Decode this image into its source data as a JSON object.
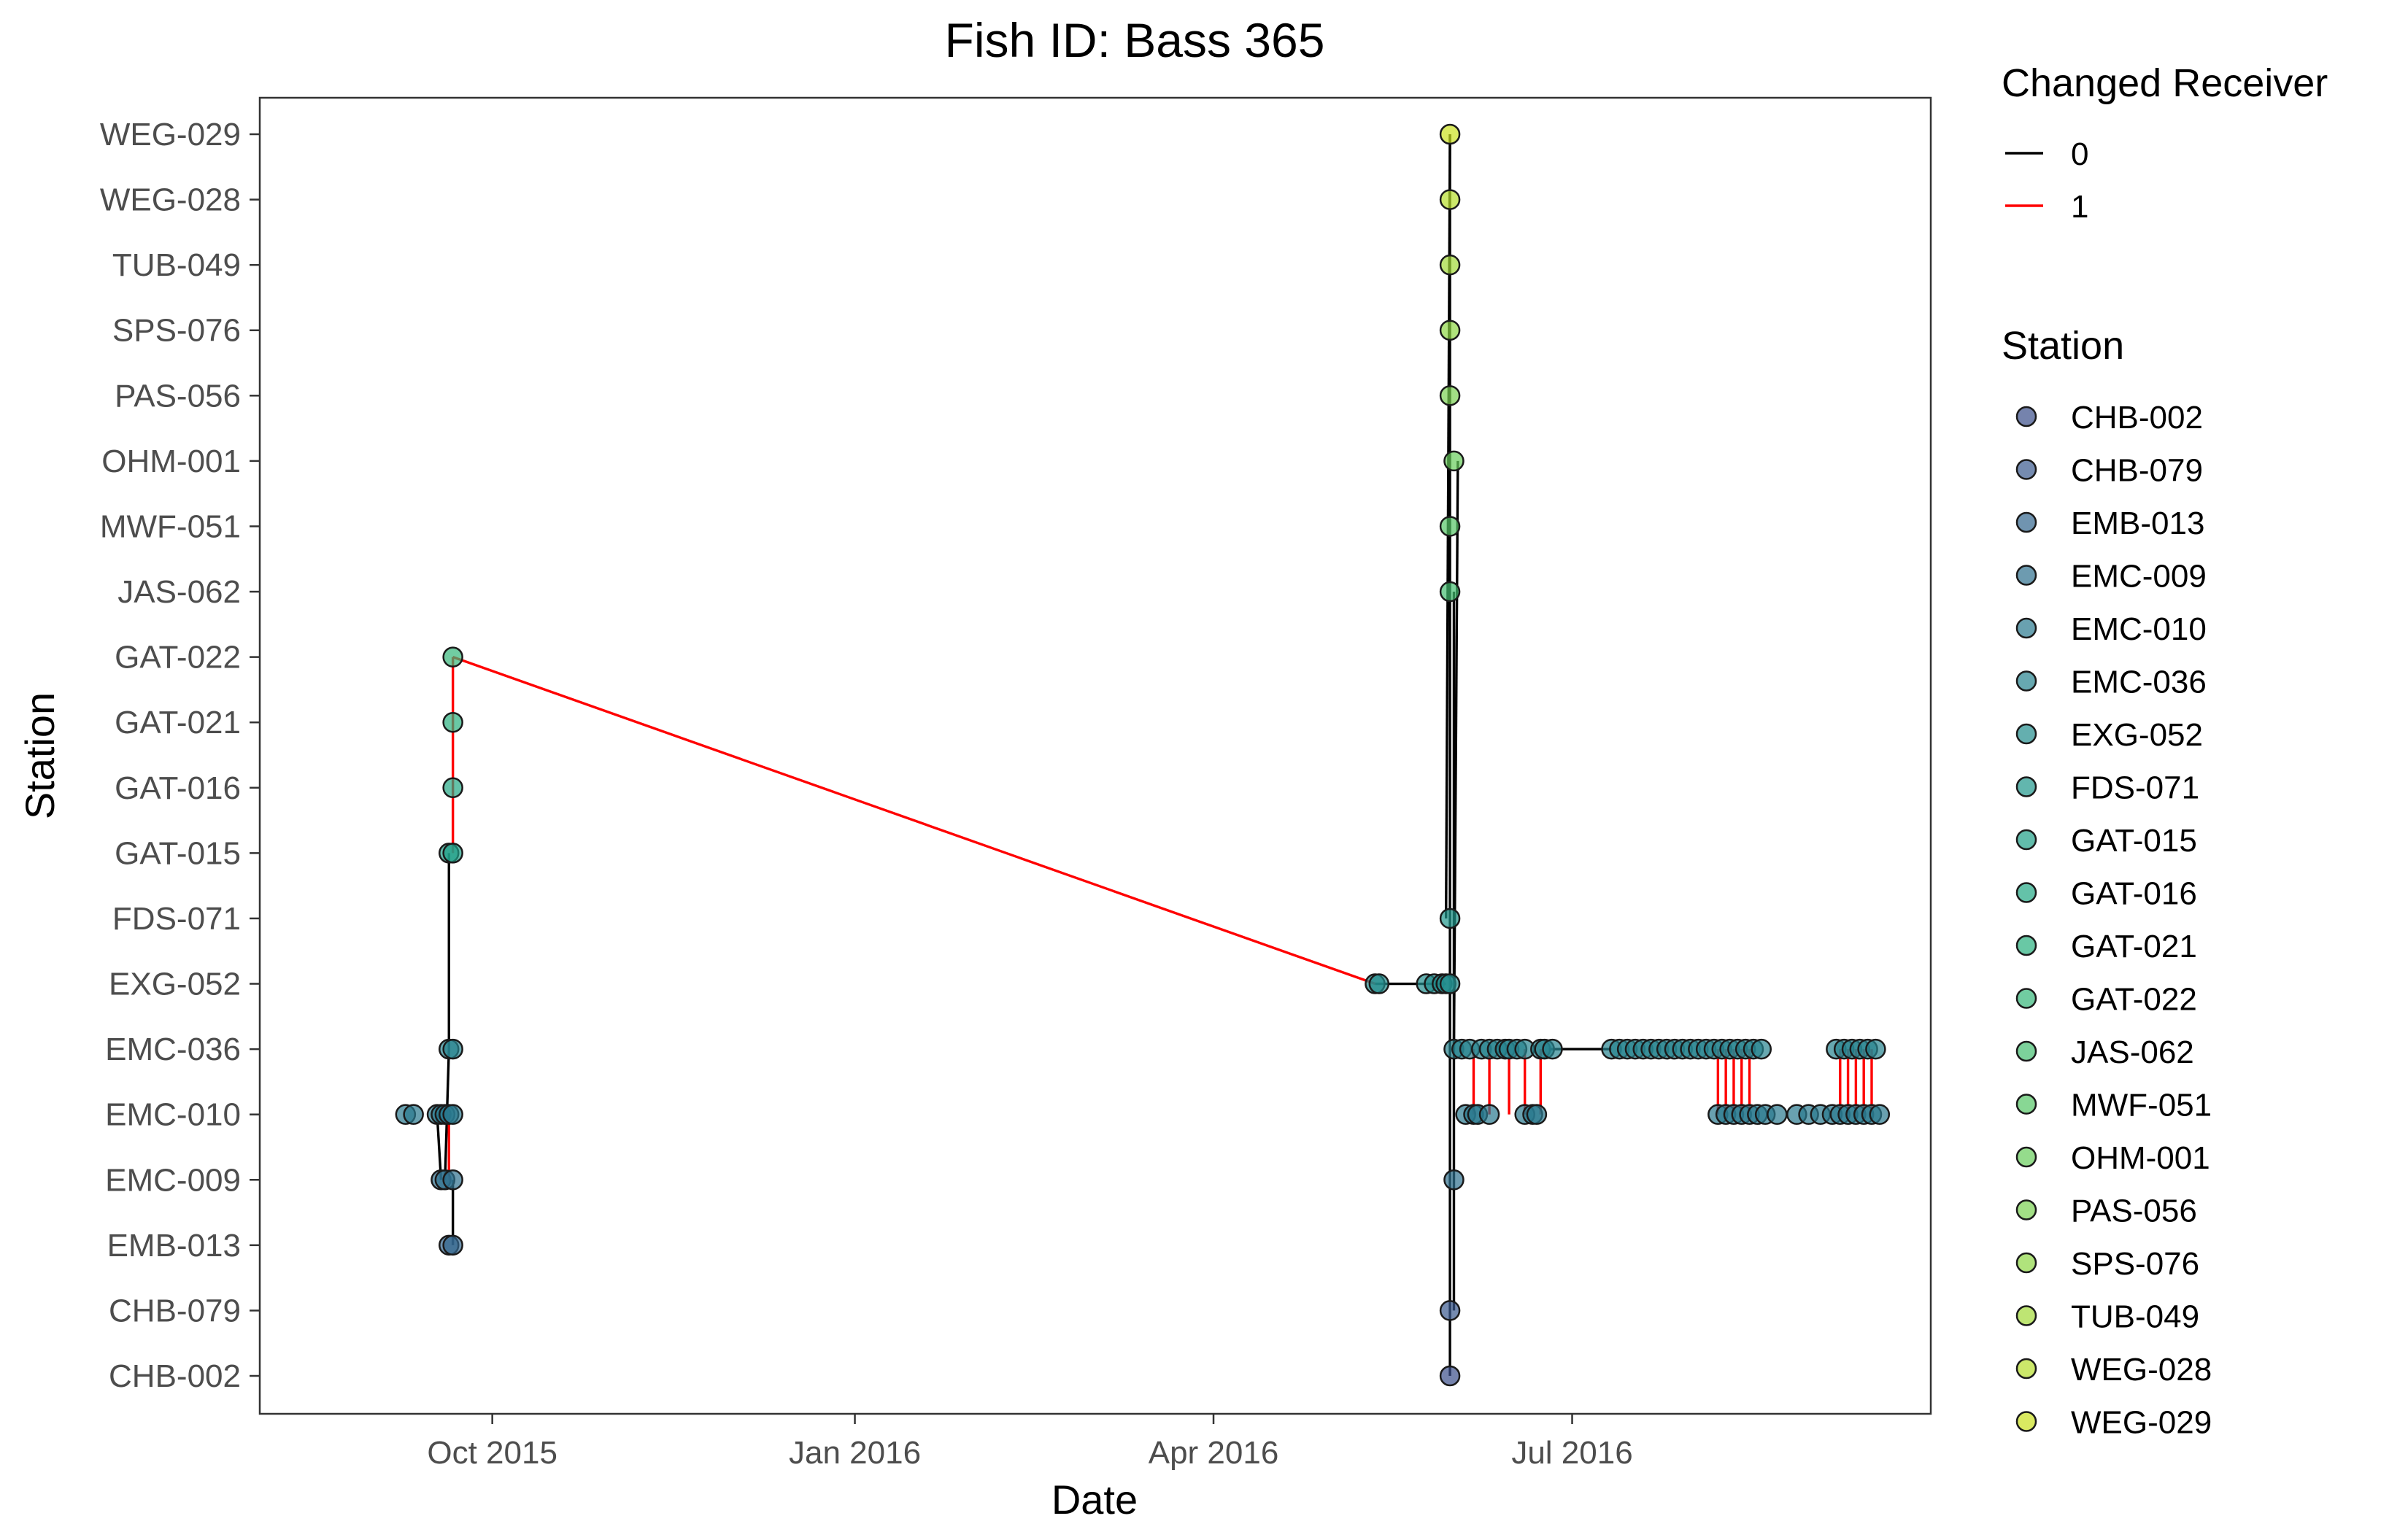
{
  "chart_data": {
    "type": "scatter",
    "title": "Fish ID: Bass 365",
    "xlabel": "Date",
    "ylabel": "Station",
    "x_ticks": [
      "Oct 2015",
      "Jan 2016",
      "Apr 2016",
      "Jul 2016"
    ],
    "x_tick_dates": [
      "2015-10-01",
      "2016-01-01",
      "2016-04-01",
      "2016-07-01"
    ],
    "x_range": [
      "2015-08-03",
      "2016-09-30"
    ],
    "stations": [
      "CHB-002",
      "CHB-079",
      "EMB-013",
      "EMC-009",
      "EMC-010",
      "EMC-036",
      "EXG-052",
      "FDS-071",
      "GAT-015",
      "GAT-016",
      "GAT-021",
      "GAT-022",
      "JAS-062",
      "MWF-051",
      "OHM-001",
      "PAS-056",
      "SPS-076",
      "TUB-049",
      "WEG-028",
      "WEG-029"
    ],
    "station_colors": [
      "#3b4f8a",
      "#3a5a8f",
      "#33668e",
      "#2f708e",
      "#2a798e",
      "#26838e",
      "#228d8d",
      "#1f978b",
      "#1fa088",
      "#22a884",
      "#2ab07f",
      "#35b779",
      "#44bf70",
      "#55c667",
      "#68cd5b",
      "#7ad151",
      "#8fd744",
      "#a2da37",
      "#b6de2b",
      "#cbe11e"
    ],
    "grid": false,
    "legend": {
      "position": "right",
      "changed_receiver": {
        "title": "Changed Receiver",
        "entries": [
          {
            "label": "0",
            "color": "#000000"
          },
          {
            "label": "1",
            "color": "#ff0000"
          }
        ]
      },
      "station": {
        "title": "Station"
      }
    },
    "series": [
      {
        "name": "0",
        "color": "#000000",
        "segments": [
          [
            [
              "2015-09-17",
              "EMC-010"
            ],
            [
              "2015-09-18",
              "EMC-009"
            ]
          ],
          [
            [
              "2015-09-19",
              "EMC-009"
            ],
            [
              "2015-09-20",
              "EMC-036"
            ]
          ],
          [
            [
              "2015-09-20",
              "EMC-036"
            ],
            [
              "2015-09-20",
              "GAT-015"
            ]
          ],
          [
            [
              "2015-09-21",
              "EMC-009"
            ],
            [
              "2015-09-21",
              "EMB-013"
            ]
          ],
          [
            [
              "2016-05-12",
              "EXG-052"
            ],
            [
              "2016-05-30",
              "EXG-052"
            ]
          ],
          [
            [
              "2016-05-30",
              "FDS-071"
            ],
            [
              "2016-05-31",
              "WEG-029"
            ]
          ],
          [
            [
              "2016-05-31",
              "CHB-002"
            ],
            [
              "2016-05-31",
              "WEG-029"
            ]
          ],
          [
            [
              "2016-06-01",
              "CHB-079"
            ],
            [
              "2016-06-01",
              "JAS-062"
            ]
          ],
          [
            [
              "2016-06-01",
              "EMC-036"
            ],
            [
              "2016-06-02",
              "OHM-001"
            ]
          ],
          [
            [
              "2016-06-25",
              "EMC-036"
            ],
            [
              "2016-07-11",
              "EMC-036"
            ]
          ]
        ]
      },
      {
        "name": "1",
        "color": "#ff0000",
        "segments": [
          [
            [
              "2015-09-21",
              "GAT-022"
            ],
            [
              "2016-05-12",
              "EXG-052"
            ]
          ],
          [
            [
              "2015-09-21",
              "GAT-022"
            ],
            [
              "2015-09-21",
              "GAT-015"
            ]
          ],
          [
            [
              "2015-09-20",
              "EMC-010"
            ],
            [
              "2015-09-20",
              "EMC-009"
            ]
          ],
          [
            [
              "2016-06-06",
              "EMC-010"
            ],
            [
              "2016-06-06",
              "EMC-036"
            ]
          ],
          [
            [
              "2016-06-10",
              "EMC-010"
            ],
            [
              "2016-06-10",
              "EMC-036"
            ]
          ],
          [
            [
              "2016-06-15",
              "EMC-010"
            ],
            [
              "2016-06-15",
              "EMC-036"
            ]
          ],
          [
            [
              "2016-06-19",
              "EMC-010"
            ],
            [
              "2016-06-19",
              "EMC-036"
            ]
          ],
          [
            [
              "2016-06-23",
              "EMC-010"
            ],
            [
              "2016-06-23",
              "EMC-036"
            ]
          ],
          [
            [
              "2016-08-07",
              "EMC-010"
            ],
            [
              "2016-08-07",
              "EMC-036"
            ]
          ],
          [
            [
              "2016-08-09",
              "EMC-010"
            ],
            [
              "2016-08-09",
              "EMC-036"
            ]
          ],
          [
            [
              "2016-08-11",
              "EMC-010"
            ],
            [
              "2016-08-11",
              "EMC-036"
            ]
          ],
          [
            [
              "2016-08-13",
              "EMC-010"
            ],
            [
              "2016-08-13",
              "EMC-036"
            ]
          ],
          [
            [
              "2016-08-15",
              "EMC-010"
            ],
            [
              "2016-08-15",
              "EMC-036"
            ]
          ],
          [
            [
              "2016-09-07",
              "EMC-010"
            ],
            [
              "2016-09-07",
              "EMC-036"
            ]
          ],
          [
            [
              "2016-09-09",
              "EMC-010"
            ],
            [
              "2016-09-09",
              "EMC-036"
            ]
          ],
          [
            [
              "2016-09-11",
              "EMC-010"
            ],
            [
              "2016-09-11",
              "EMC-036"
            ]
          ],
          [
            [
              "2016-09-13",
              "EMC-010"
            ],
            [
              "2016-09-13",
              "EMC-036"
            ]
          ],
          [
            [
              "2016-09-15",
              "EMC-010"
            ],
            [
              "2016-09-15",
              "EMC-036"
            ]
          ]
        ]
      }
    ],
    "points": [
      [
        "2015-09-09",
        "EMC-010"
      ],
      [
        "2015-09-11",
        "EMC-010"
      ],
      [
        "2015-09-17",
        "EMC-010"
      ],
      [
        "2015-09-18",
        "EMC-010"
      ],
      [
        "2015-09-19",
        "EMC-010"
      ],
      [
        "2015-09-20",
        "EMC-010"
      ],
      [
        "2015-09-21",
        "EMC-010"
      ],
      [
        "2015-09-18",
        "EMC-009"
      ],
      [
        "2015-09-19",
        "EMC-009"
      ],
      [
        "2015-09-21",
        "EMC-009"
      ],
      [
        "2015-09-20",
        "EMB-013"
      ],
      [
        "2015-09-21",
        "EMB-013"
      ],
      [
        "2015-09-20",
        "EMC-036"
      ],
      [
        "2015-09-21",
        "EMC-036"
      ],
      [
        "2015-09-20",
        "GAT-015"
      ],
      [
        "2015-09-21",
        "GAT-015"
      ],
      [
        "2015-09-21",
        "GAT-016"
      ],
      [
        "2015-09-21",
        "GAT-021"
      ],
      [
        "2015-09-21",
        "GAT-022"
      ],
      [
        "2016-05-12",
        "EXG-052"
      ],
      [
        "2016-05-13",
        "EXG-052"
      ],
      [
        "2016-05-25",
        "EXG-052"
      ],
      [
        "2016-05-27",
        "EXG-052"
      ],
      [
        "2016-05-29",
        "EXG-052"
      ],
      [
        "2016-05-30",
        "EXG-052"
      ],
      [
        "2016-05-31",
        "EXG-052"
      ],
      [
        "2016-05-31",
        "FDS-071"
      ],
      [
        "2016-05-31",
        "WEG-029"
      ],
      [
        "2016-05-31",
        "WEG-028"
      ],
      [
        "2016-05-31",
        "TUB-049"
      ],
      [
        "2016-05-31",
        "SPS-076"
      ],
      [
        "2016-05-31",
        "PAS-056"
      ],
      [
        "2016-06-01",
        "OHM-001"
      ],
      [
        "2016-05-31",
        "MWF-051"
      ],
      [
        "2016-05-31",
        "JAS-062"
      ],
      [
        "2016-05-31",
        "CHB-079"
      ],
      [
        "2016-05-31",
        "CHB-002"
      ],
      [
        "2016-06-01",
        "EMC-009"
      ],
      [
        "2016-06-01",
        "EMC-036"
      ],
      [
        "2016-06-03",
        "EMC-036"
      ],
      [
        "2016-06-04",
        "EMC-010"
      ],
      [
        "2016-06-05",
        "EMC-036"
      ],
      [
        "2016-06-06",
        "EMC-010"
      ],
      [
        "2016-06-07",
        "EMC-010"
      ],
      [
        "2016-06-08",
        "EMC-036"
      ],
      [
        "2016-06-10",
        "EMC-036"
      ],
      [
        "2016-06-10",
        "EMC-010"
      ],
      [
        "2016-06-12",
        "EMC-036"
      ],
      [
        "2016-06-14",
        "EMC-036"
      ],
      [
        "2016-06-15",
        "EMC-036"
      ],
      [
        "2016-06-17",
        "EMC-036"
      ],
      [
        "2016-06-19",
        "EMC-036"
      ],
      [
        "2016-06-19",
        "EMC-010"
      ],
      [
        "2016-06-21",
        "EMC-010"
      ],
      [
        "2016-06-22",
        "EMC-010"
      ],
      [
        "2016-06-23",
        "EMC-036"
      ],
      [
        "2016-06-24",
        "EMC-036"
      ],
      [
        "2016-06-26",
        "EMC-036"
      ],
      [
        "2016-07-11",
        "EMC-036"
      ],
      [
        "2016-07-13",
        "EMC-036"
      ],
      [
        "2016-07-15",
        "EMC-036"
      ],
      [
        "2016-07-17",
        "EMC-036"
      ],
      [
        "2016-07-19",
        "EMC-036"
      ],
      [
        "2016-07-21",
        "EMC-036"
      ],
      [
        "2016-07-23",
        "EMC-036"
      ],
      [
        "2016-07-25",
        "EMC-036"
      ],
      [
        "2016-07-27",
        "EMC-036"
      ],
      [
        "2016-07-29",
        "EMC-036"
      ],
      [
        "2016-07-31",
        "EMC-036"
      ],
      [
        "2016-08-02",
        "EMC-036"
      ],
      [
        "2016-08-04",
        "EMC-036"
      ],
      [
        "2016-08-06",
        "EMC-036"
      ],
      [
        "2016-08-07",
        "EMC-010"
      ],
      [
        "2016-08-08",
        "EMC-036"
      ],
      [
        "2016-08-09",
        "EMC-010"
      ],
      [
        "2016-08-10",
        "EMC-036"
      ],
      [
        "2016-08-11",
        "EMC-010"
      ],
      [
        "2016-08-12",
        "EMC-036"
      ],
      [
        "2016-08-13",
        "EMC-010"
      ],
      [
        "2016-08-14",
        "EMC-036"
      ],
      [
        "2016-08-15",
        "EMC-010"
      ],
      [
        "2016-08-16",
        "EMC-036"
      ],
      [
        "2016-08-17",
        "EMC-010"
      ],
      [
        "2016-08-18",
        "EMC-036"
      ],
      [
        "2016-08-19",
        "EMC-010"
      ],
      [
        "2016-08-22",
        "EMC-010"
      ],
      [
        "2016-08-27",
        "EMC-010"
      ],
      [
        "2016-08-30",
        "EMC-010"
      ],
      [
        "2016-09-02",
        "EMC-010"
      ],
      [
        "2016-09-05",
        "EMC-010"
      ],
      [
        "2016-09-06",
        "EMC-036"
      ],
      [
        "2016-09-07",
        "EMC-010"
      ],
      [
        "2016-09-08",
        "EMC-036"
      ],
      [
        "2016-09-09",
        "EMC-010"
      ],
      [
        "2016-09-10",
        "EMC-036"
      ],
      [
        "2016-09-11",
        "EMC-010"
      ],
      [
        "2016-09-12",
        "EMC-036"
      ],
      [
        "2016-09-13",
        "EMC-010"
      ],
      [
        "2016-09-14",
        "EMC-036"
      ],
      [
        "2016-09-15",
        "EMC-010"
      ],
      [
        "2016-09-16",
        "EMC-036"
      ],
      [
        "2016-09-17",
        "EMC-010"
      ]
    ]
  }
}
